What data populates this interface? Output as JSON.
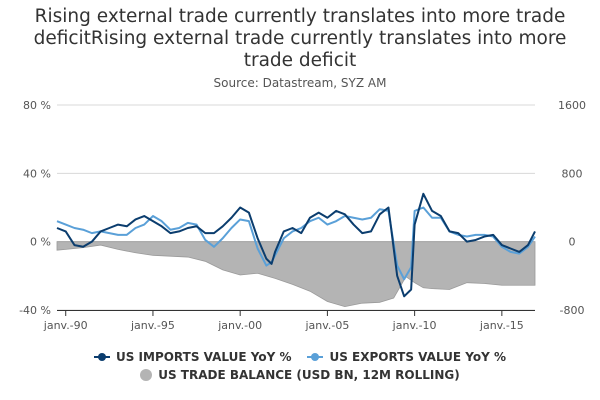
{
  "title": {
    "line1": "Rising external trade currently translates into more trade",
    "line2": "deficitRising external trade currently translates into more",
    "line3": "trade deficit"
  },
  "subtitle": "Source: Datastream, SYZ AM",
  "chart_data": {
    "type": "line",
    "x_start": 1989.5,
    "x_end": 2016.9,
    "xticks": [
      1990,
      1995,
      2000,
      2005,
      2010,
      2015
    ],
    "xtick_labels": [
      "janv.-90",
      "janv.-95",
      "janv.-00",
      "janv.-05",
      "janv.-10",
      "janv.-15"
    ],
    "y_left": {
      "range": [
        -40,
        80
      ],
      "ticks": [
        -40,
        0,
        40,
        80
      ],
      "tick_labels": [
        "-40 %",
        "0 %",
        "40 %",
        "80 %"
      ]
    },
    "y_right": {
      "range": [
        -800,
        1600
      ],
      "ticks": [
        -800,
        0,
        800,
        1600
      ],
      "tick_labels": [
        "-800",
        "0",
        "800",
        "1600"
      ]
    },
    "grid": true,
    "legend_position": "bottom",
    "colors": {
      "imports": "#0b3d6e",
      "exports": "#5aa0d8",
      "balance": "#b4b4b4",
      "grid": "#d8d8d8"
    },
    "series": [
      {
        "name": "US IMPORTS VALUE YoY %",
        "axis": "left",
        "x": [
          1989.5,
          1990.0,
          1990.5,
          1991.0,
          1991.5,
          1992.0,
          1992.5,
          1993.0,
          1993.5,
          1994.0,
          1994.5,
          1995.0,
          1995.5,
          1996.0,
          1996.5,
          1997.0,
          1997.5,
          1998.0,
          1998.5,
          1999.0,
          1999.5,
          2000.0,
          2000.5,
          2001.0,
          2001.5,
          2001.8,
          2002.0,
          2002.5,
          2003.0,
          2003.5,
          2004.0,
          2004.5,
          2005.0,
          2005.5,
          2006.0,
          2006.5,
          2007.0,
          2007.5,
          2008.0,
          2008.5,
          2009.0,
          2009.4,
          2009.8,
          2010.0,
          2010.5,
          2011.0,
          2011.5,
          2012.0,
          2012.5,
          2013.0,
          2013.5,
          2014.0,
          2014.5,
          2015.0,
          2015.5,
          2016.0,
          2016.5,
          2016.9
        ],
        "values": [
          8,
          6,
          -2,
          -3,
          0,
          6,
          8,
          10,
          9,
          13,
          15,
          12,
          9,
          5,
          6,
          8,
          9,
          5,
          5,
          9,
          14,
          20,
          17,
          2,
          -10,
          -13,
          -6,
          6,
          8,
          5,
          14,
          17,
          14,
          18,
          16,
          10,
          5,
          6,
          16,
          20,
          -20,
          -32,
          -28,
          10,
          28,
          18,
          15,
          6,
          5,
          0,
          1,
          3,
          4,
          -2,
          -4,
          -6,
          -2,
          6
        ]
      },
      {
        "name": "US EXPORTS VALUE YoY %",
        "axis": "left",
        "x": [
          1989.5,
          1990.0,
          1990.5,
          1991.0,
          1991.5,
          1992.0,
          1992.5,
          1993.0,
          1993.5,
          1994.0,
          1994.5,
          1995.0,
          1995.5,
          1996.0,
          1996.5,
          1997.0,
          1997.5,
          1998.0,
          1998.5,
          1999.0,
          1999.5,
          2000.0,
          2000.5,
          2001.0,
          2001.5,
          2001.8,
          2002.0,
          2002.5,
          2003.0,
          2003.5,
          2004.0,
          2004.5,
          2005.0,
          2005.5,
          2006.0,
          2006.5,
          2007.0,
          2007.5,
          2008.0,
          2008.5,
          2009.0,
          2009.4,
          2009.8,
          2010.0,
          2010.5,
          2011.0,
          2011.5,
          2012.0,
          2012.5,
          2013.0,
          2013.5,
          2014.0,
          2014.5,
          2015.0,
          2015.5,
          2016.0,
          2016.5,
          2016.9
        ],
        "values": [
          12,
          10,
          8,
          7,
          5,
          6,
          5,
          4,
          4,
          8,
          10,
          15,
          12,
          7,
          8,
          11,
          10,
          1,
          -3,
          2,
          8,
          13,
          12,
          -4,
          -14,
          -12,
          -8,
          2,
          6,
          8,
          12,
          14,
          10,
          12,
          15,
          14,
          13,
          14,
          19,
          18,
          -14,
          -22,
          -15,
          18,
          20,
          14,
          14,
          6,
          4,
          3,
          4,
          4,
          3,
          -3,
          -6,
          -7,
          -3,
          3
        ]
      },
      {
        "name": "US TRADE BALANCE (USD BN, 12M ROLLING)",
        "axis": "right",
        "x": [
          1989.5,
          1990.0,
          1991.0,
          1992.0,
          1993.0,
          1994.0,
          1995.0,
          1996.0,
          1997.0,
          1998.0,
          1999.0,
          2000.0,
          2001.0,
          2002.0,
          2003.0,
          2004.0,
          2005.0,
          2006.0,
          2007.0,
          2008.0,
          2008.8,
          2009.5,
          2010.0,
          2010.5,
          2011.0,
          2012.0,
          2013.0,
          2014.0,
          2015.0,
          2016.0,
          2016.9
        ],
        "values": [
          -100,
          -90,
          -70,
          -40,
          -90,
          -130,
          -160,
          -170,
          -180,
          -230,
          -330,
          -390,
          -370,
          -430,
          -500,
          -580,
          -700,
          -760,
          -720,
          -710,
          -660,
          -410,
          -480,
          -540,
          -550,
          -560,
          -480,
          -490,
          -510,
          -510,
          -510
        ]
      }
    ]
  }
}
